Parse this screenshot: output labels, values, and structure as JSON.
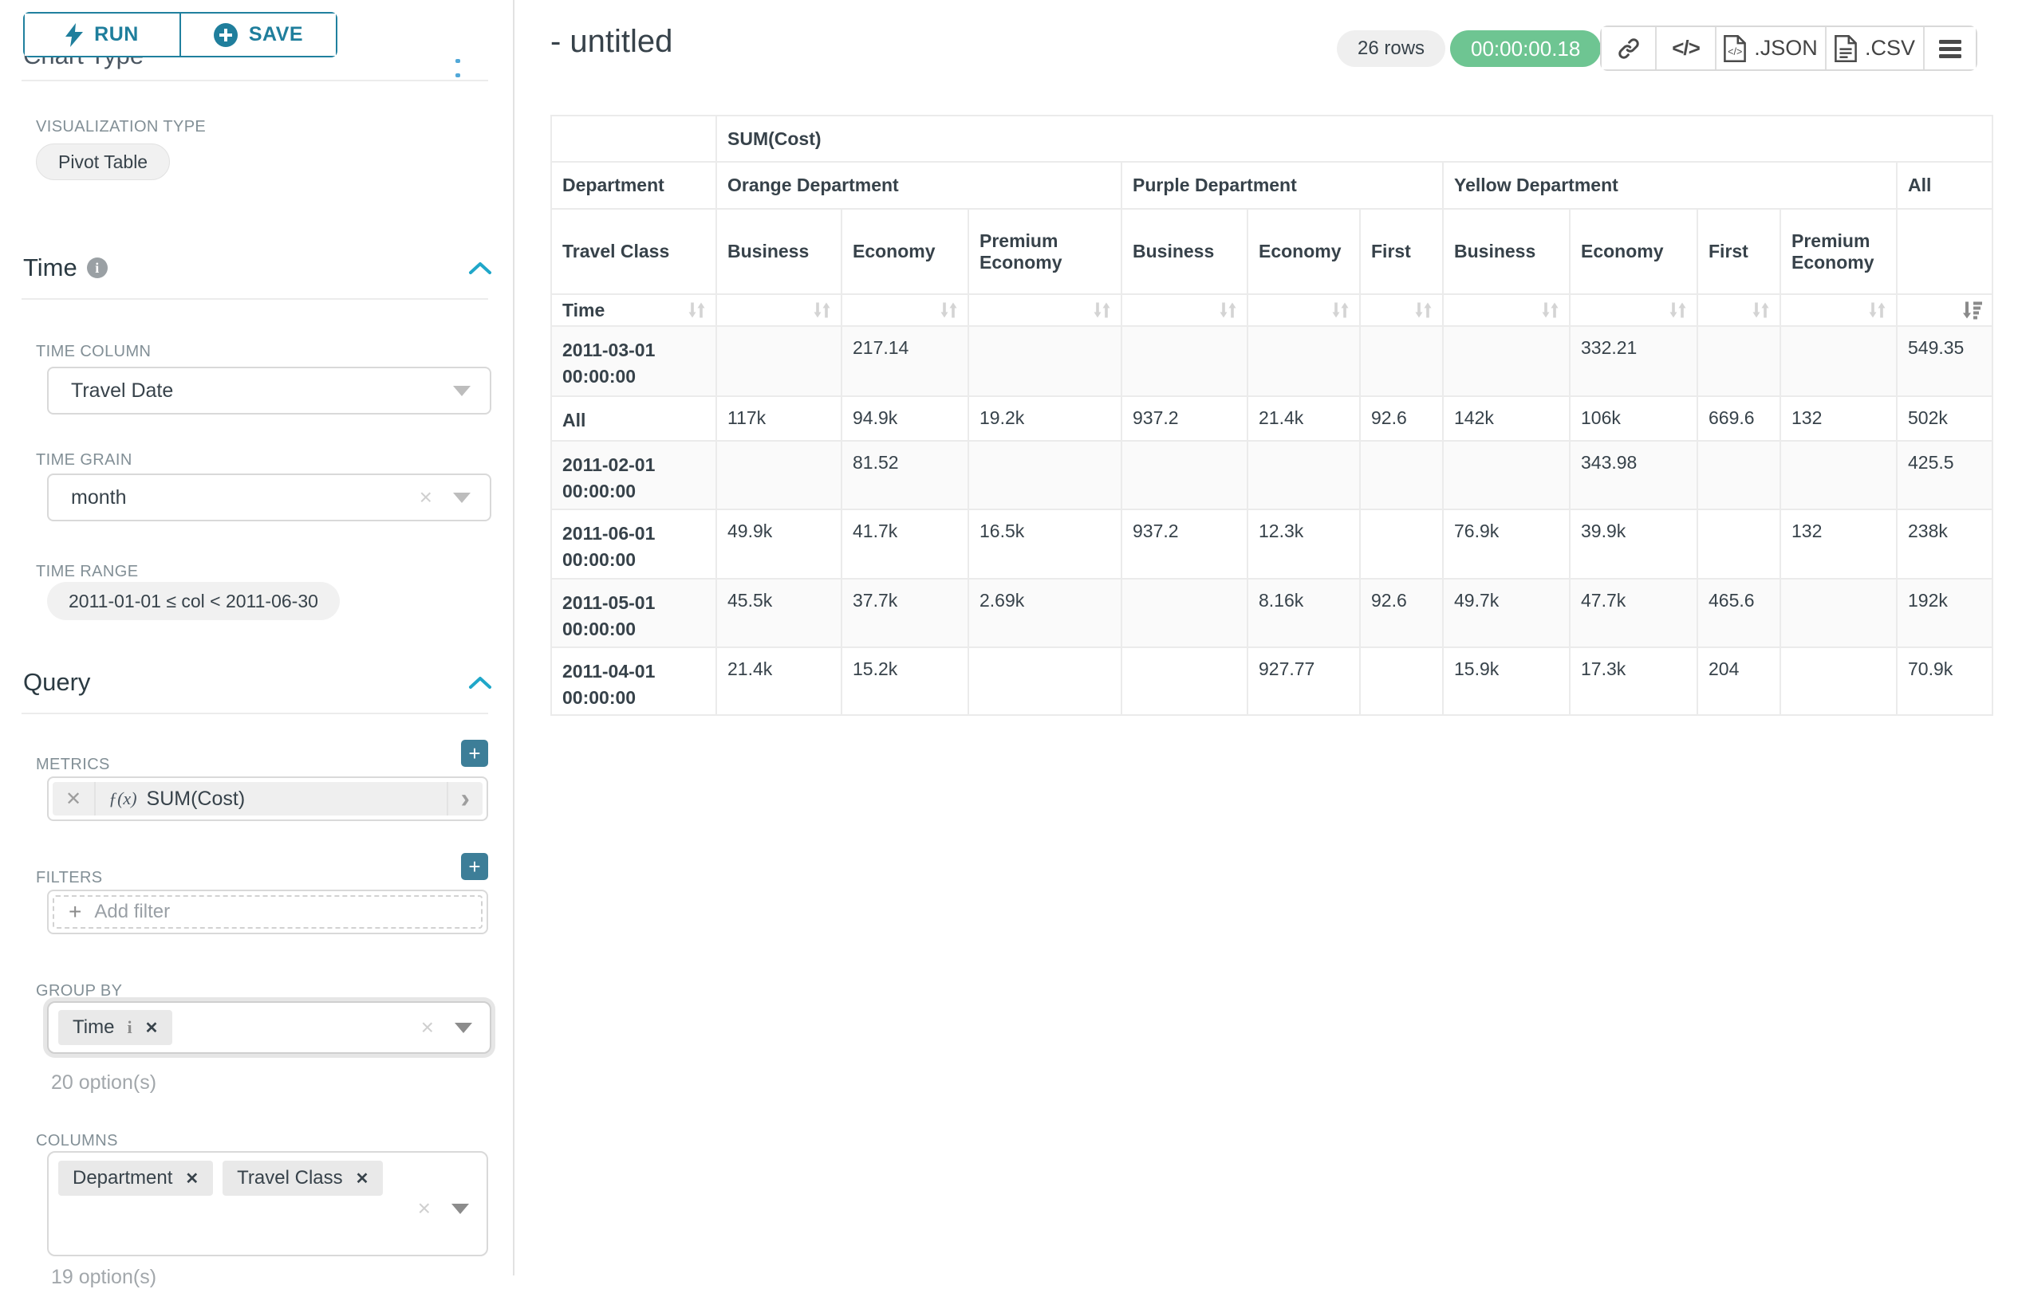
{
  "colors": {
    "accent_teal": "#1f7e9c",
    "plus_button_teal": "#3d7e98",
    "caret_blue": "#20a7c9",
    "timer_green": "#6ec592",
    "stripe_gray": "#fafafa"
  },
  "sidebar": {
    "run_label": "RUN",
    "save_label": "SAVE",
    "chart_type_heading": "Chart Type",
    "visualization_type_label": "VISUALIZATION TYPE",
    "visualization_type_value": "Pivot Table",
    "time_section": {
      "title": "Time",
      "time_column_label": "TIME COLUMN",
      "time_column_value": "Travel Date",
      "time_grain_label": "TIME GRAIN",
      "time_grain_value": "month",
      "time_range_label": "TIME RANGE",
      "time_range_value": "2011-01-01 ≤ col < 2011-06-30"
    },
    "query_section": {
      "title": "Query",
      "metrics_label": "METRICS",
      "metric_fx": "ƒ(x)",
      "metric_value": "SUM(Cost)",
      "filters_label": "FILTERS",
      "add_filter_placeholder": "Add filter",
      "group_by_label": "GROUP BY",
      "group_by_chips": [
        "Time"
      ],
      "group_by_options_hint": "20 option(s)",
      "columns_label": "COLUMNS",
      "columns_chips": [
        "Department",
        "Travel Class"
      ],
      "columns_options_hint": "19 option(s)"
    }
  },
  "header": {
    "title": "- untitled",
    "row_count": "26 rows",
    "query_duration": "00:00:00.18",
    "export_json_label": ".JSON",
    "export_csv_label": ".CSV",
    "code_glyph": "</>"
  },
  "icons": {
    "close": "✕",
    "clear": "×",
    "plus": "+",
    "chevron_right": "›"
  },
  "pivot_table": {
    "metric_header": "SUM(Cost)",
    "corner_labels": [
      "Department",
      "Travel Class",
      "Time"
    ],
    "column_groups": [
      {
        "label": "Orange Department",
        "columns": [
          "Business",
          "Economy",
          "Premium Economy"
        ]
      },
      {
        "label": "Purple Department",
        "columns": [
          "Business",
          "Economy",
          "First"
        ]
      },
      {
        "label": "Yellow Department",
        "columns": [
          "Business",
          "Economy",
          "First",
          "Premium Economy"
        ]
      },
      {
        "label": "All",
        "columns": [
          ""
        ]
      }
    ],
    "rows": [
      {
        "label": "2011-03-01 00:00:00",
        "values": [
          "",
          "217.14",
          "",
          "",
          "",
          "",
          "",
          "332.21",
          "",
          "",
          "549.35"
        ]
      },
      {
        "label": "All",
        "values": [
          "117k",
          "94.9k",
          "19.2k",
          "937.2",
          "21.4k",
          "92.6",
          "142k",
          "106k",
          "669.6",
          "132",
          "502k"
        ]
      },
      {
        "label": "2011-02-01 00:00:00",
        "values": [
          "",
          "81.52",
          "",
          "",
          "",
          "",
          "",
          "343.98",
          "",
          "",
          "425.5"
        ]
      },
      {
        "label": "2011-06-01 00:00:00",
        "values": [
          "49.9k",
          "41.7k",
          "16.5k",
          "937.2",
          "12.3k",
          "",
          "76.9k",
          "39.9k",
          "",
          "132",
          "238k"
        ]
      },
      {
        "label": "2011-05-01 00:00:00",
        "values": [
          "45.5k",
          "37.7k",
          "2.69k",
          "",
          "8.16k",
          "92.6",
          "49.7k",
          "47.7k",
          "465.6",
          "",
          "192k"
        ]
      },
      {
        "label": "2011-04-01 00:00:00",
        "values": [
          "21.4k",
          "15.2k",
          "",
          "",
          "927.77",
          "",
          "15.9k",
          "17.3k",
          "204",
          "",
          "70.9k"
        ]
      }
    ]
  }
}
